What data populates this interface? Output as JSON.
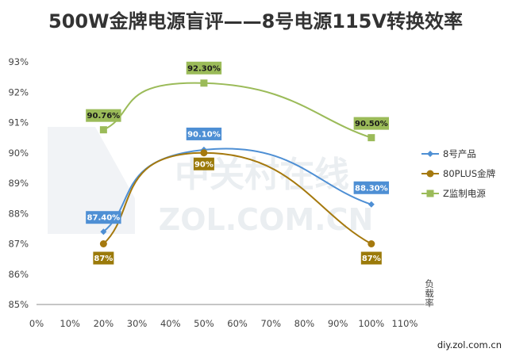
{
  "chart_data": {
    "type": "line",
    "title": "500W金牌电源盲评——8号电源115V转换效率",
    "xlabel": "负载率",
    "ylabel": "",
    "x_ticks": [
      "0%",
      "10%",
      "20%",
      "30%",
      "40%",
      "50%",
      "60%",
      "70%",
      "80%",
      "90%",
      "100%",
      "110%"
    ],
    "y_ticks": [
      "85%",
      "86%",
      "87%",
      "88%",
      "89%",
      "90%",
      "91%",
      "92%",
      "93%"
    ],
    "xlim": [
      0,
      110
    ],
    "ylim": [
      85,
      93
    ],
    "x": [
      20,
      50,
      100
    ],
    "grid": false,
    "legend_position": "right",
    "series": [
      {
        "name": "8号产品",
        "values": [
          87.4,
          90.1,
          88.3
        ],
        "labels": [
          "87.40%",
          "90.10%",
          "88.30%"
        ],
        "color": "#4e8fd4",
        "label_bg": "#4e8fd4",
        "label_color": "#ffffff",
        "marker": "diamond"
      },
      {
        "name": "80PLUS金牌",
        "values": [
          87,
          90,
          87
        ],
        "labels": [
          "87%",
          "90%",
          "87%"
        ],
        "color": "#a5790e",
        "label_bg": "#9b7a0a",
        "label_color": "#ffffff",
        "marker": "circle"
      },
      {
        "name": "Z监制电源",
        "values": [
          90.76,
          92.3,
          90.5
        ],
        "labels": [
          "90.76%",
          "92.30%",
          "90.50%"
        ],
        "color": "#9bbb59",
        "label_bg": "#9bbb59",
        "label_color": "#1a1a1a",
        "marker": "square"
      }
    ]
  },
  "watermark": {
    "line1": "中关村在线",
    "line2": "ZOL.COM.CN"
  },
  "credit": "diy.zol.com.cn"
}
